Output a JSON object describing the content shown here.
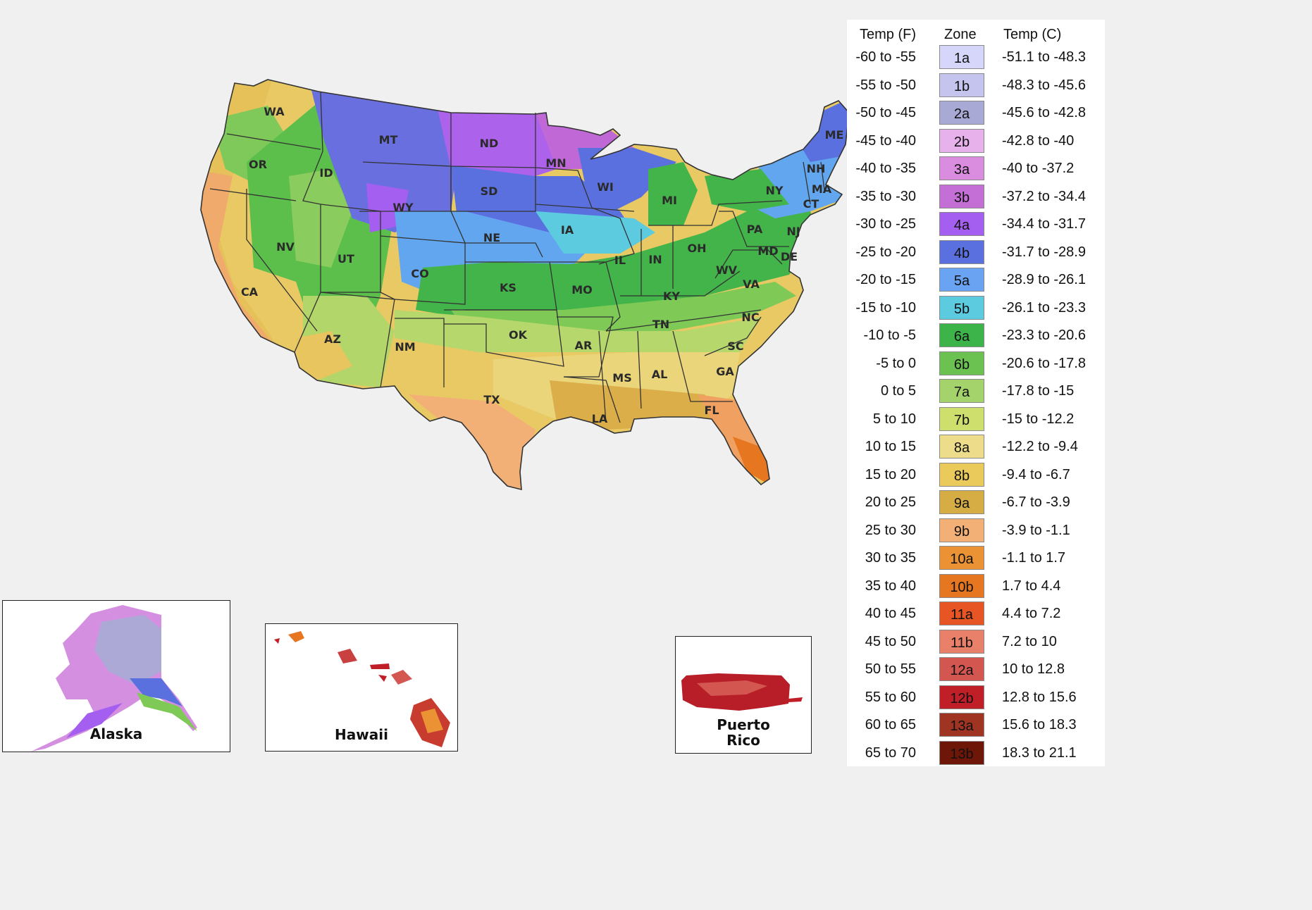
{
  "legend": {
    "header_f": "Temp (F)",
    "header_zone": "Zone",
    "header_c": "Temp (C)",
    "rows": [
      {
        "f": "-60 to -55",
        "zone": "1a",
        "c": "-51.1 to -48.3",
        "color": "#d6d6fa"
      },
      {
        "f": "-55 to -50",
        "zone": "1b",
        "c": "-48.3 to -45.6",
        "color": "#c4c4ee"
      },
      {
        "f": "-50 to -45",
        "zone": "2a",
        "c": "-45.6 to -42.8",
        "color": "#a9a9d6"
      },
      {
        "f": "-45 to -40",
        "zone": "2b",
        "c": "-42.8 to -40",
        "color": "#e7b1ec"
      },
      {
        "f": "-40 to -35",
        "zone": "3a",
        "c": "-40 to -37.2",
        "color": "#da8ddf"
      },
      {
        "f": "-35 to -30",
        "zone": "3b",
        "c": "-37.2 to -34.4",
        "color": "#c46fd6"
      },
      {
        "f": "-30 to -25",
        "zone": "4a",
        "c": "-34.4 to -31.7",
        "color": "#a45ff0"
      },
      {
        "f": "-25 to -20",
        "zone": "4b",
        "c": "-31.7 to -28.9",
        "color": "#5b70df"
      },
      {
        "f": "-20 to -15",
        "zone": "5a",
        "c": "-28.9 to -26.1",
        "color": "#6aa3f1"
      },
      {
        "f": "-15 to -10",
        "zone": "5b",
        "c": "-26.1 to -23.3",
        "color": "#5ccbe0"
      },
      {
        "f": "-10 to -5",
        "zone": "6a",
        "c": "-23.3 to -20.6",
        "color": "#3db44a"
      },
      {
        "f": "-5 to 0",
        "zone": "6b",
        "c": "-20.6 to -17.8",
        "color": "#6cc250"
      },
      {
        "f": "0 to 5",
        "zone": "7a",
        "c": "-17.8 to -15",
        "color": "#a4d36b"
      },
      {
        "f": "5 to 10",
        "zone": "7b",
        "c": "-15 to -12.2",
        "color": "#cedf6e"
      },
      {
        "f": "10 to 15",
        "zone": "8a",
        "c": "-12.2 to -9.4",
        "color": "#eddd8b"
      },
      {
        "f": "15 to 20",
        "zone": "8b",
        "c": "-9.4 to -6.7",
        "color": "#e9ca5a"
      },
      {
        "f": "20 to 25",
        "zone": "9a",
        "c": "-6.7 to -3.9",
        "color": "#d6ac45"
      },
      {
        "f": "25 to 30",
        "zone": "9b",
        "c": "-3.9 to -1.1",
        "color": "#f3b076"
      },
      {
        "f": "30 to 35",
        "zone": "10a",
        "c": "-1.1 to 1.7",
        "color": "#ea9234"
      },
      {
        "f": "35 to 40",
        "zone": "10b",
        "c": "1.7 to 4.4",
        "color": "#e6761f"
      },
      {
        "f": "40 to 45",
        "zone": "11a",
        "c": "4.4 to 7.2",
        "color": "#e65523"
      },
      {
        "f": "45 to 50",
        "zone": "11b",
        "c": "7.2 to 10",
        "color": "#e8806a"
      },
      {
        "f": "50 to 55",
        "zone": "12a",
        "c": "10 to 12.8",
        "color": "#d45650"
      },
      {
        "f": "55 to 60",
        "zone": "12b",
        "c": "12.8 to 15.6",
        "color": "#c01f28"
      },
      {
        "f": "60 to 65",
        "zone": "13a",
        "c": "15.6 to 18.3",
        "color": "#a03423"
      },
      {
        "f": "65 to 70",
        "zone": "13b",
        "c": "18.3 to 21.1",
        "color": "#6e1607"
      }
    ]
  },
  "states": [
    "WA",
    "OR",
    "CA",
    "ID",
    "NV",
    "MT",
    "WY",
    "UT",
    "AZ",
    "CO",
    "NM",
    "ND",
    "SD",
    "NE",
    "KS",
    "OK",
    "TX",
    "MN",
    "IA",
    "MO",
    "AR",
    "LA",
    "WI",
    "IL",
    "MI",
    "IN",
    "KY",
    "TN",
    "MS",
    "AL",
    "OH",
    "GA",
    "FL",
    "SC",
    "NC",
    "VA",
    "WV",
    "PA",
    "NY",
    "ME",
    "NH",
    "MA",
    "CT",
    "NJ",
    "MD",
    "DE"
  ],
  "insets": {
    "alaska": "Alaska",
    "hawaii": "Hawaii",
    "pr_line1": "Puerto",
    "pr_line2": "Rico"
  }
}
